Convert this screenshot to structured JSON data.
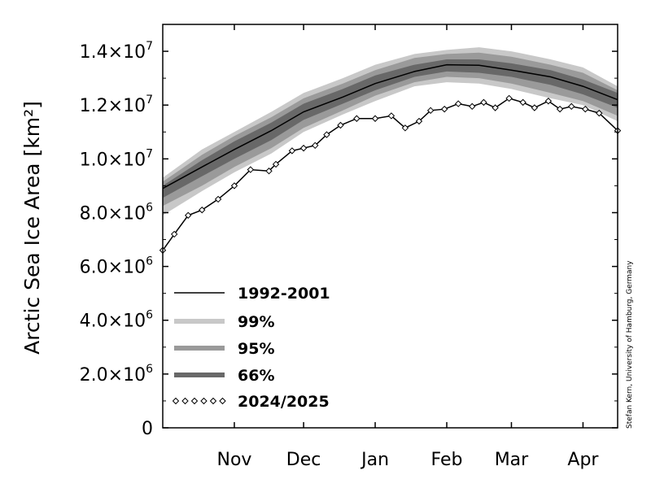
{
  "chart_data": {
    "type": "area",
    "ylabel": "Arctic Sea Ice Area [km²]",
    "ylim": [
      0,
      15000000
    ],
    "y_tick_labels": [
      {
        "value": 0,
        "mant": "0",
        "exp": ""
      },
      {
        "value": 2000000,
        "mant": "2.0×10",
        "exp": "6"
      },
      {
        "value": 4000000,
        "mant": "4.0×10",
        "exp": "6"
      },
      {
        "value": 6000000,
        "mant": "6.0×10",
        "exp": "6"
      },
      {
        "value": 8000000,
        "mant": "8.0×10",
        "exp": "6"
      },
      {
        "value": 10000000,
        "mant": "1.0×10",
        "exp": "7"
      },
      {
        "value": 12000000,
        "mant": "1.2×10",
        "exp": "7"
      },
      {
        "value": 14000000,
        "mant": "1.4×10",
        "exp": "7"
      }
    ],
    "x_tick_labels": [
      "Nov",
      "Dec",
      "Jan",
      "Feb",
      "Mar",
      "Apr"
    ],
    "legend": {
      "placement": "bottom-left",
      "entries": [
        "1992-2001",
        "99%",
        "95%",
        "66%",
        "2024/2025"
      ]
    },
    "colors": {
      "band_99": "#c8c8c8",
      "band_95": "#9a9a9a",
      "band_66": "#686868",
      "mean_line": "#000000",
      "current_marker": "#000000"
    },
    "credit": "Stefan Kern, University of Hamburg, Germany",
    "series": [
      {
        "name": "1992-2001",
        "x": [
          "Oct 15",
          "Nov 1",
          "Nov 15",
          "Dec 1",
          "Dec 15",
          "Jan 1",
          "Jan 15",
          "Feb 1",
          "Feb 15",
          "Mar 1",
          "Mar 15",
          "Apr 1",
          "Apr 15",
          "Apr 30"
        ],
        "y": [
          8900000,
          9700000,
          10350000,
          11050000,
          11750000,
          12300000,
          12800000,
          13250000,
          13500000,
          13480000,
          13300000,
          13050000,
          12700000,
          12200000
        ]
      },
      {
        "name": "2024/2025",
        "x": [
          "Oct 15",
          "Oct 20",
          "Oct 26",
          "Nov 1",
          "Nov 8",
          "Nov 15",
          "Nov 22",
          "Nov 30",
          "Dec 3",
          "Dec 10",
          "Dec 15",
          "Dec 20",
          "Dec 25",
          "Dec 31",
          "Jan 7",
          "Jan 15",
          "Jan 22",
          "Jan 28",
          "Feb 3",
          "Feb 8",
          "Feb 14",
          "Feb 20",
          "Feb 26",
          "Mar 3",
          "Mar 8",
          "Mar 14",
          "Mar 20",
          "Mar 25",
          "Mar 31",
          "Apr 5",
          "Apr 10",
          "Apr 16",
          "Apr 22",
          "Apr 30"
        ],
        "y": [
          6600000,
          7200000,
          7900000,
          8100000,
          8500000,
          9000000,
          9600000,
          9550000,
          9800000,
          10300000,
          10400000,
          10500000,
          10900000,
          11250000,
          11500000,
          11500000,
          11600000,
          11150000,
          11400000,
          11800000,
          11850000,
          12050000,
          11950000,
          12100000,
          11900000,
          12250000,
          12100000,
          11900000,
          12150000,
          11850000,
          11950000,
          11850000,
          11700000,
          11050000
        ]
      }
    ],
    "bands": {
      "x": [
        "Oct 15",
        "Nov 1",
        "Nov 15",
        "Dec 1",
        "Dec 15",
        "Jan 1",
        "Jan 15",
        "Feb 1",
        "Feb 15",
        "Mar 1",
        "Mar 15",
        "Apr 1",
        "Apr 15",
        "Apr 30"
      ],
      "p99": {
        "lower": [
          7900000,
          8800000,
          9500000,
          10200000,
          11000000,
          11650000,
          12150000,
          12700000,
          12850000,
          12800000,
          12600000,
          12250000,
          12000000,
          11400000
        ],
        "upper": [
          9300000,
          10350000,
          11000000,
          11750000,
          12450000,
          13000000,
          13500000,
          13900000,
          14050000,
          14150000,
          14000000,
          13700000,
          13400000,
          12700000
        ]
      },
      "p95": {
        "lower": [
          8250000,
          9000000,
          9700000,
          10400000,
          11150000,
          11800000,
          12350000,
          12850000,
          13050000,
          13000000,
          12800000,
          12450000,
          12150000,
          11600000
        ],
        "upper": [
          9150000,
          10150000,
          10850000,
          11550000,
          12250000,
          12800000,
          13300000,
          13750000,
          13900000,
          13950000,
          13800000,
          13500000,
          13200000,
          12550000
        ]
      },
      "p66": {
        "lower": [
          8550000,
          9350000,
          10000000,
          10700000,
          11450000,
          12050000,
          12550000,
          13050000,
          13250000,
          13200000,
          13050000,
          12750000,
          12400000,
          11900000
        ],
        "upper": [
          9000000,
          9950000,
          10650000,
          11350000,
          12050000,
          12600000,
          13100000,
          13500000,
          13700000,
          13700000,
          13550000,
          13300000,
          12950000,
          12450000
        ]
      }
    }
  }
}
